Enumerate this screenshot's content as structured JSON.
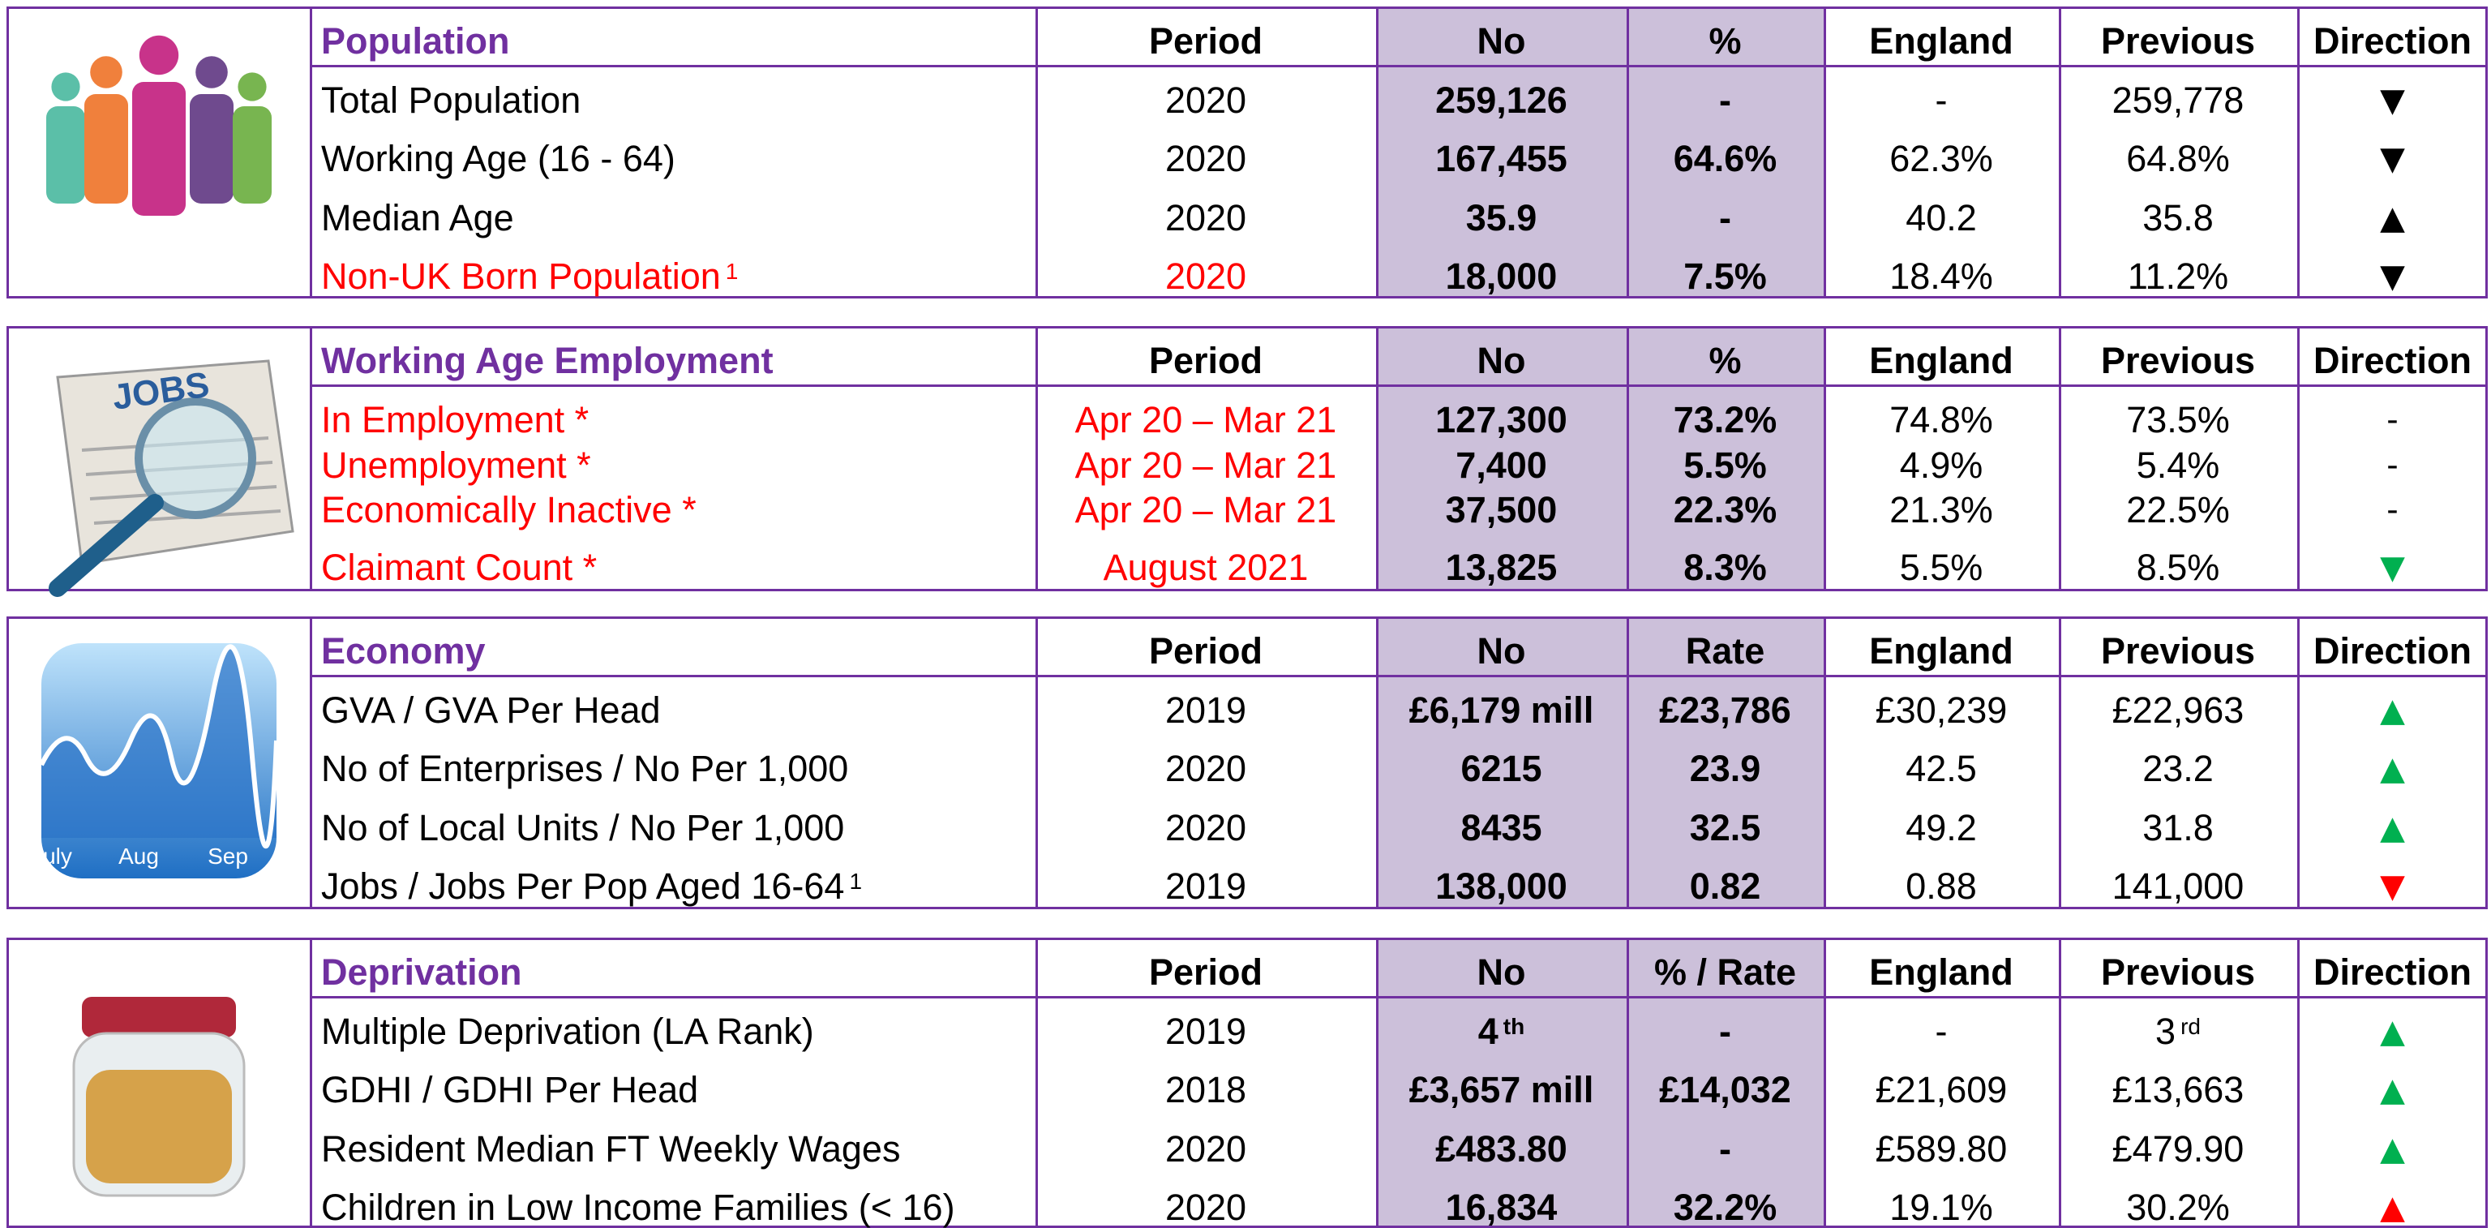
{
  "sections": [
    {
      "title": "Population",
      "headers": [
        "Period",
        "No",
        "%",
        "England",
        "Previous",
        "Direction"
      ],
      "rows": [
        {
          "label": "Total Population",
          "cells": [
            "2020",
            "259,126",
            "-",
            "-",
            "259,778",
            "▼"
          ],
          "direction_color": "#000000"
        },
        {
          "label": "Working Age (16 - 64)",
          "cells": [
            "2020",
            "167,455",
            "64.6%",
            "62.3%",
            "64.8%",
            "▼"
          ],
          "direction_color": "#000000"
        },
        {
          "label": "Median Age",
          "cells": [
            "2020",
            "35.9",
            "-",
            "40.2",
            "35.8",
            "▲"
          ],
          "direction_color": "#000000"
        },
        {
          "label": "Non-UK Born Population",
          "label_sup": "1",
          "red": true,
          "cells": [
            "2020",
            "18,000",
            "7.5%",
            "18.4%",
            "11.2%",
            "▼"
          ],
          "direction_color": "#000000"
        }
      ]
    },
    {
      "title": "Working Age Employment",
      "icon_text": "JOBS",
      "headers": [
        "Period",
        "No",
        "%",
        "England",
        "Previous",
        "Direction"
      ],
      "rows": [
        {
          "label": "In Employment *",
          "red": true,
          "cells": [
            "Apr 20 – Mar 21",
            "127,300",
            "73.2%",
            "74.8%",
            "73.5%",
            "-"
          ],
          "direction_color": "#000000"
        },
        {
          "label": "Unemployment *",
          "red": true,
          "cells": [
            "Apr 20 – Mar 21",
            "7,400",
            "5.5%",
            "4.9%",
            "5.4%",
            "-"
          ],
          "direction_color": "#000000"
        },
        {
          "label": "Economically Inactive *",
          "red": true,
          "cells": [
            "Apr 20 – Mar 21",
            "37,500",
            "22.3%",
            "21.3%",
            "22.5%",
            "-"
          ],
          "direction_color": "#000000"
        },
        {
          "label": "Claimant Count *",
          "red": true,
          "cells": [
            "August 2021",
            "13,825",
            "8.3%",
            "5.5%",
            "8.5%",
            "▼"
          ],
          "direction_color": "#00b050"
        }
      ]
    },
    {
      "title": "Economy",
      "icon_labels": [
        "uly",
        "Aug",
        "Sep"
      ],
      "headers": [
        "Period",
        "No",
        "Rate",
        "England",
        "Previous",
        "Direction"
      ],
      "rows": [
        {
          "label": "GVA / GVA Per Head",
          "cells": [
            "2019",
            "£6,179 mill",
            "£23,786",
            "£30,239",
            "£22,963",
            "▲"
          ],
          "direction_color": "#00b050"
        },
        {
          "label": "No of Enterprises / No Per 1,000",
          "cells": [
            "2020",
            "6215",
            "23.9",
            "42.5",
            "23.2",
            "▲"
          ],
          "direction_color": "#00b050"
        },
        {
          "label": "No of Local Units / No Per 1,000",
          "cells": [
            "2020",
            "8435",
            "32.5",
            "49.2",
            "31.8",
            "▲"
          ],
          "direction_color": "#00b050"
        },
        {
          "label": "Jobs / Jobs Per Pop Aged 16-64",
          "label_sup": "1",
          "cells": [
            "2019",
            "138,000",
            "0.82",
            "0.88",
            "141,000",
            "▼"
          ],
          "direction_color": "#ff0000"
        }
      ]
    },
    {
      "title": "Deprivation",
      "headers": [
        "Period",
        "No",
        "% / Rate",
        "England",
        "Previous",
        "Direction"
      ],
      "rows": [
        {
          "label": "Multiple Deprivation (LA Rank)",
          "cells": [
            "2019",
            {
              "text": "4",
              "sup": "th"
            },
            "-",
            "-",
            {
              "text": "3",
              "sup": "rd"
            },
            "▲"
          ],
          "direction_color": "#00b050"
        },
        {
          "label": "GDHI / GDHI Per Head",
          "cells": [
            "2018",
            "£3,657 mill",
            "£14,032",
            "£21,609",
            "£13,663",
            "▲"
          ],
          "direction_color": "#00b050"
        },
        {
          "label": "Resident Median FT Weekly Wages",
          "cells": [
            "2020",
            "£483.80",
            "-",
            "£589.80",
            "£479.90",
            "▲"
          ],
          "direction_color": "#00b050"
        },
        {
          "label": "Children in Low Income Families (< 16)",
          "cells": [
            "2020",
            "16,834",
            "32.2%",
            "19.1%",
            "30.2%",
            "▲"
          ],
          "direction_color": "#ff0000"
        }
      ]
    }
  ]
}
